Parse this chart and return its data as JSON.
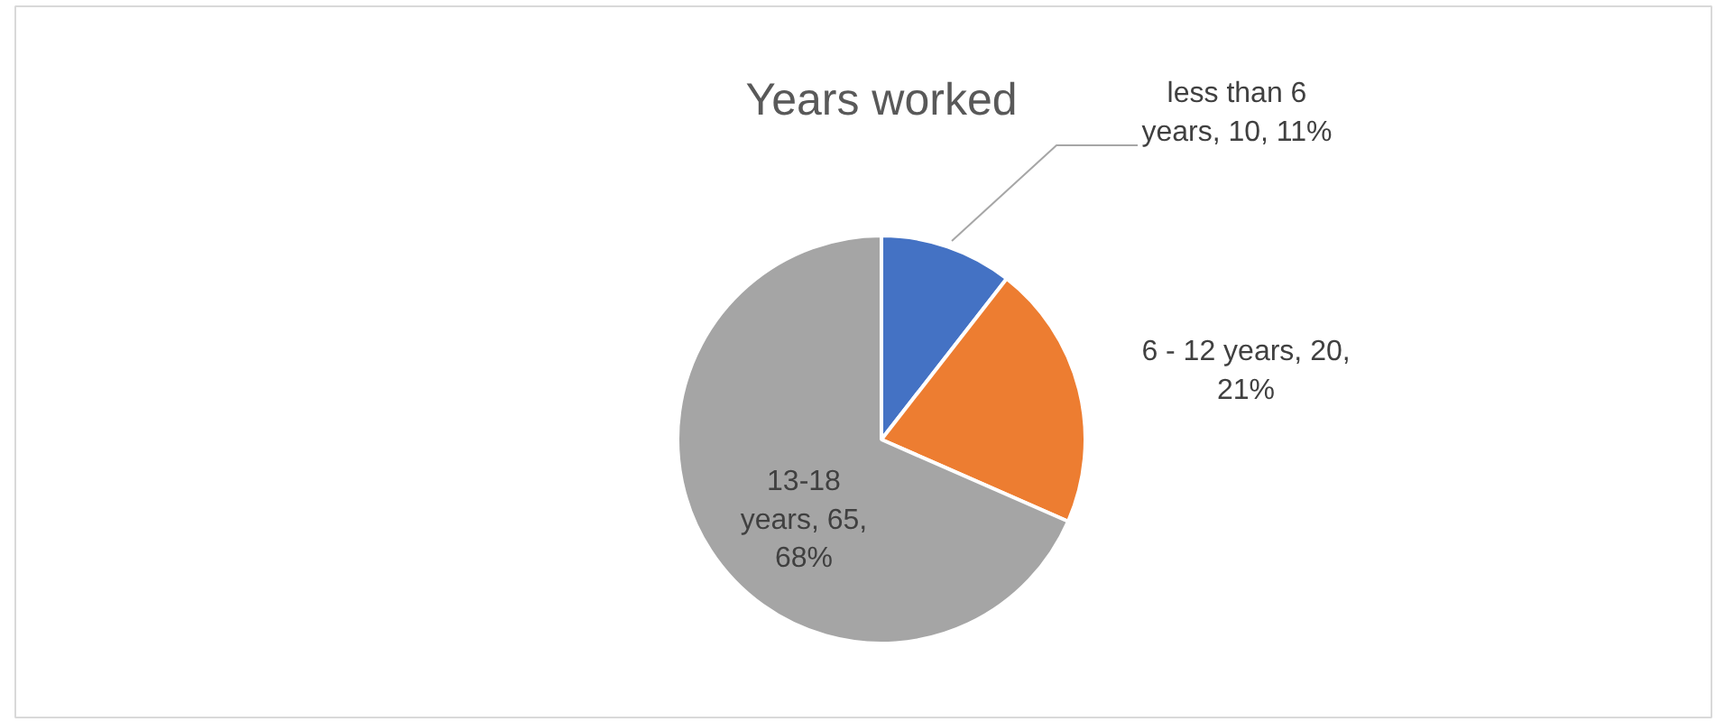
{
  "chart_data": {
    "type": "pie",
    "title": "Years worked",
    "categories": [
      "less than 6 years",
      "6 - 12 years",
      "13-18 years"
    ],
    "values": [
      10,
      20,
      65
    ],
    "colors": [
      "#4472c4",
      "#ed7d31",
      "#a5a5a5"
    ],
    "value_labels": [
      "10, 11%",
      "20, 21%",
      "65, 68%"
    ]
  }
}
